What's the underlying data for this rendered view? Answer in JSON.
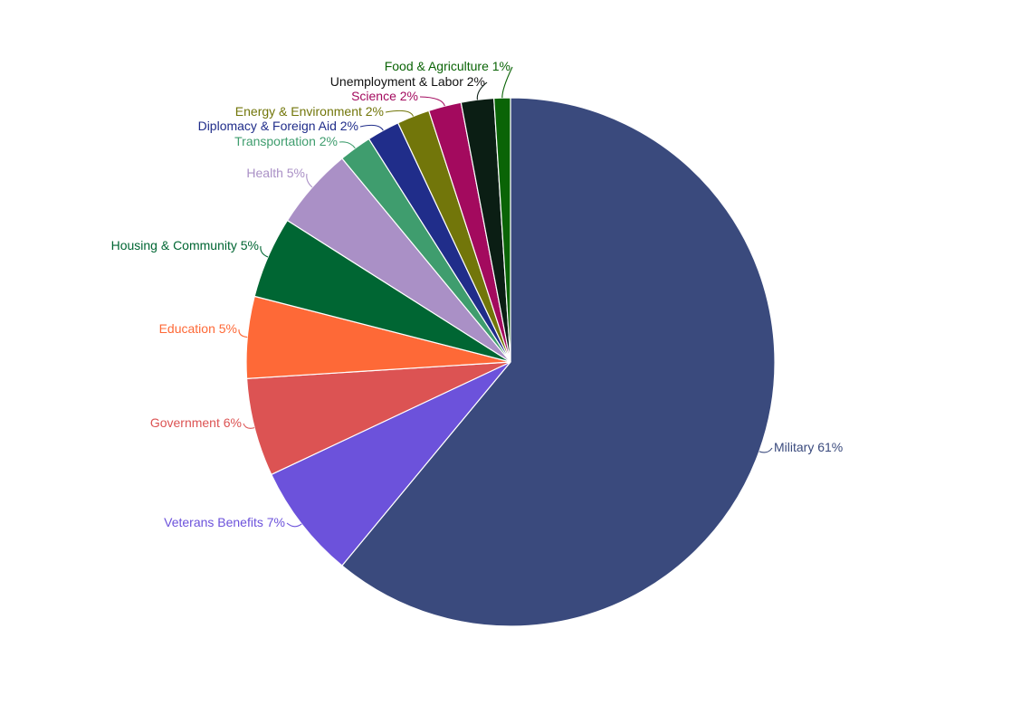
{
  "chart_data": {
    "type": "pie",
    "title": "",
    "direction": "clockwise",
    "start": "top",
    "slices": [
      {
        "label": "Military",
        "pct_text": "61%",
        "value": 61,
        "color": "#3a4a7d",
        "label_color": "#3a4a7d",
        "leader_color": "#3a4a7d"
      },
      {
        "label": "Veterans Benefits",
        "pct_text": "7%",
        "value": 7,
        "color": "#6c52db",
        "label_color": "#6c52db",
        "leader_color": "#6c52db"
      },
      {
        "label": "Government",
        "pct_text": "6%",
        "value": 6,
        "color": "#dc5353",
        "label_color": "#dc5353",
        "leader_color": "#dc5353"
      },
      {
        "label": "Education",
        "pct_text": "5%",
        "value": 5,
        "color": "#fe6937",
        "label_color": "#fe6937",
        "leader_color": "#fe6937"
      },
      {
        "label": "Housing & Community",
        "pct_text": "5%",
        "value": 5,
        "color": "#006633",
        "label_color": "#006633",
        "leader_color": "#006633"
      },
      {
        "label": "Health",
        "pct_text": "5%",
        "value": 5,
        "color": "#aa90c6",
        "label_color": "#aa90c6",
        "leader_color": "#aa90c6"
      },
      {
        "label": "Transportation",
        "pct_text": "2%",
        "value": 2,
        "color": "#3f9d6e",
        "label_color": "#3f9d6e",
        "leader_color": "#3f9d6e"
      },
      {
        "label": "Diplomacy & Foreign Aid",
        "pct_text": "2%",
        "value": 2,
        "color": "#202d8a",
        "label_color": "#202d8a",
        "leader_color": "#202d8a"
      },
      {
        "label": "Energy & Environment",
        "pct_text": "2%",
        "value": 2,
        "color": "#72760a",
        "label_color": "#72760a",
        "leader_color": "#72760a"
      },
      {
        "label": "Science",
        "pct_text": "2%",
        "value": 2,
        "color": "#a30a5e",
        "label_color": "#a30a5e",
        "leader_color": "#a30a5e"
      },
      {
        "label": "Unemployment & Labor",
        "pct_text": "2%",
        "value": 2,
        "color": "#0b1e14",
        "label_color": "#111111",
        "leader_color": "#0b1e14"
      },
      {
        "label": "Food & Agriculture",
        "pct_text": "1%",
        "value": 1,
        "color": "#0a6406",
        "label_color": "#0a6406",
        "leader_color": "#0a6406"
      }
    ]
  }
}
